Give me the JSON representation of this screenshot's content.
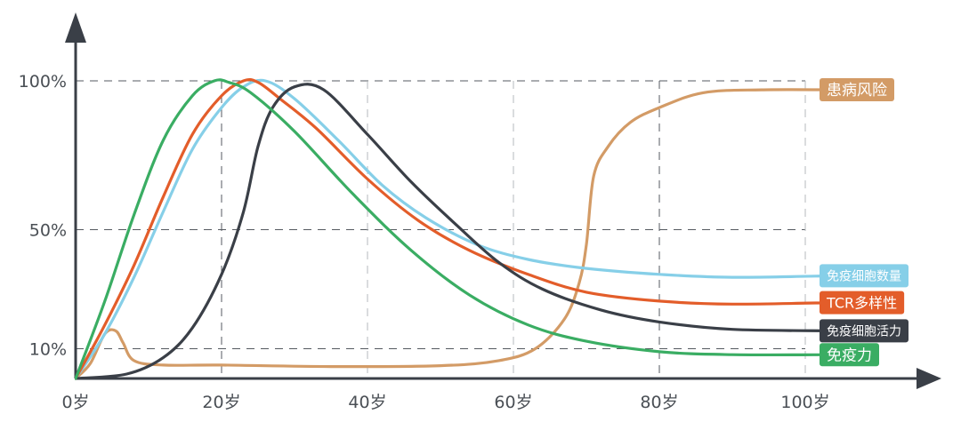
{
  "chart_data": {
    "type": "line",
    "title": "",
    "xlabel": "",
    "ylabel": "",
    "x_ticks": [
      {
        "value": 0,
        "label": "0岁"
      },
      {
        "value": 20,
        "label": "20岁"
      },
      {
        "value": 40,
        "label": "40岁"
      },
      {
        "value": 60,
        "label": "60岁"
      },
      {
        "value": 80,
        "label": "80岁"
      },
      {
        "value": 100,
        "label": "100岁"
      }
    ],
    "y_ticks": [
      {
        "value": 10,
        "label": "10%"
      },
      {
        "value": 50,
        "label": "50%"
      },
      {
        "value": 100,
        "label": "100%"
      }
    ],
    "xlim": [
      0,
      115
    ],
    "ylim": [
      0,
      115
    ],
    "grid": "dashed",
    "legend": "right, labels at line ends",
    "series": [
      {
        "name": "患病风险",
        "color": "#d39b66",
        "label_size": 17,
        "points": [
          [
            0,
            0
          ],
          [
            2,
            5
          ],
          [
            4,
            15
          ],
          [
            5.5,
            16
          ],
          [
            6.5,
            12
          ],
          [
            8,
            6
          ],
          [
            12,
            4.5
          ],
          [
            20,
            4.5
          ],
          [
            35,
            4
          ],
          [
            50,
            4.3
          ],
          [
            58,
            6
          ],
          [
            63,
            10
          ],
          [
            67,
            20
          ],
          [
            69,
            32
          ],
          [
            70,
            45
          ],
          [
            71,
            68
          ],
          [
            73,
            78
          ],
          [
            76,
            86
          ],
          [
            80,
            91
          ],
          [
            86,
            96
          ],
          [
            94,
            97
          ],
          [
            104,
            97
          ]
        ]
      },
      {
        "name": "免疫细胞数量",
        "color": "#86cfe8",
        "label_size": 14,
        "points": [
          [
            0,
            0
          ],
          [
            4,
            15
          ],
          [
            8,
            34
          ],
          [
            12,
            56
          ],
          [
            16,
            77
          ],
          [
            20,
            91
          ],
          [
            23,
            98
          ],
          [
            26,
            100
          ],
          [
            30,
            94
          ],
          [
            36,
            80
          ],
          [
            42,
            65
          ],
          [
            48,
            54
          ],
          [
            55,
            45
          ],
          [
            62,
            40
          ],
          [
            70,
            37
          ],
          [
            80,
            35
          ],
          [
            90,
            34
          ],
          [
            104,
            34.5
          ]
        ]
      },
      {
        "name": "TCR多样性",
        "color": "#e35d2a",
        "label_size": 16,
        "points": [
          [
            0,
            0
          ],
          [
            4,
            18
          ],
          [
            8,
            38
          ],
          [
            12,
            61
          ],
          [
            16,
            82
          ],
          [
            20,
            95
          ],
          [
            23,
            100
          ],
          [
            25,
            99.5
          ],
          [
            28,
            94
          ],
          [
            33,
            84
          ],
          [
            40,
            67
          ],
          [
            47,
            53
          ],
          [
            54,
            43
          ],
          [
            62,
            35
          ],
          [
            70,
            29
          ],
          [
            80,
            26
          ],
          [
            90,
            25
          ],
          [
            104,
            25.5
          ]
        ]
      },
      {
        "name": "免疫细胞活力",
        "color": "#3a3f47",
        "label_size": 14,
        "points": [
          [
            0,
            0
          ],
          [
            7,
            1.5
          ],
          [
            12,
            7
          ],
          [
            16,
            17
          ],
          [
            20,
            35
          ],
          [
            23,
            56
          ],
          [
            25,
            78
          ],
          [
            27,
            91
          ],
          [
            30,
            98
          ],
          [
            34,
            97
          ],
          [
            40,
            82
          ],
          [
            46,
            66
          ],
          [
            52,
            52
          ],
          [
            58,
            39
          ],
          [
            64,
            30
          ],
          [
            72,
            23
          ],
          [
            80,
            19
          ],
          [
            90,
            16.5
          ],
          [
            104,
            16
          ]
        ]
      },
      {
        "name": "免疫力",
        "color": "#3aad63",
        "label_size": 17,
        "points": [
          [
            0,
            0
          ],
          [
            4,
            26
          ],
          [
            8,
            55
          ],
          [
            12,
            80
          ],
          [
            16,
            95
          ],
          [
            19,
            100
          ],
          [
            21,
            99.5
          ],
          [
            24,
            96
          ],
          [
            30,
            83
          ],
          [
            38,
            62
          ],
          [
            46,
            43
          ],
          [
            54,
            28
          ],
          [
            62,
            18
          ],
          [
            70,
            12.5
          ],
          [
            80,
            9
          ],
          [
            90,
            8
          ],
          [
            104,
            8
          ]
        ]
      }
    ]
  }
}
